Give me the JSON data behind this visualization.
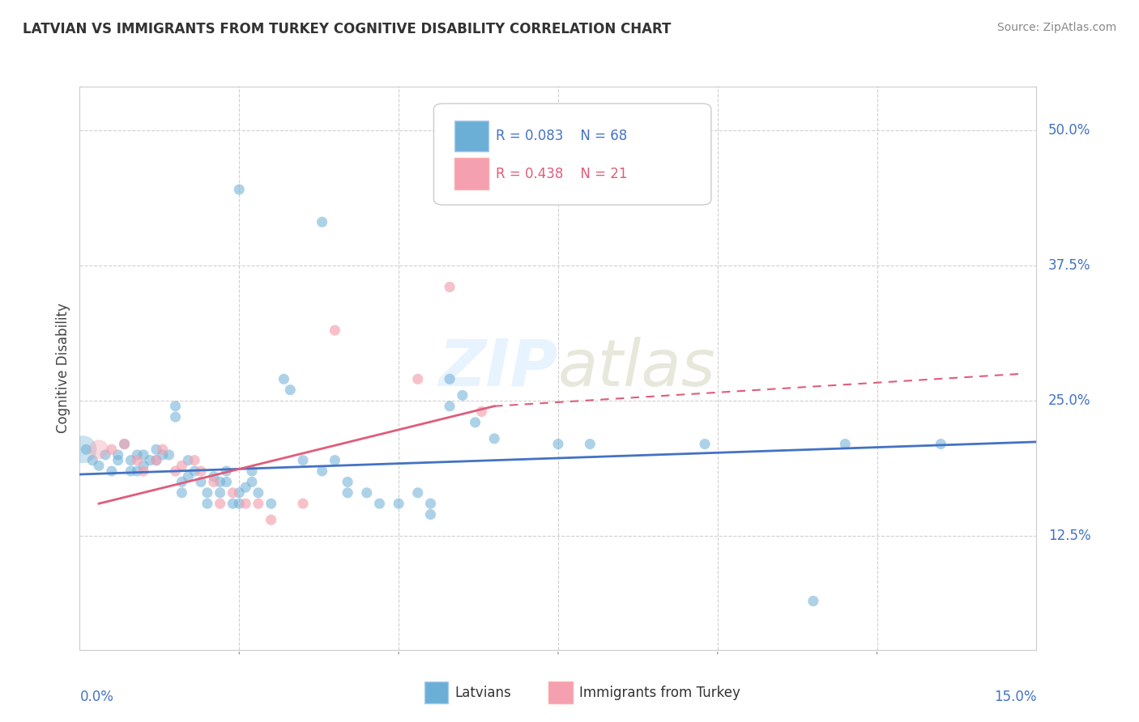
{
  "title": "LATVIAN VS IMMIGRANTS FROM TURKEY COGNITIVE DISABILITY CORRELATION CHART",
  "source": "Source: ZipAtlas.com",
  "ylabel": "Cognitive Disability",
  "y_ticks": [
    0.125,
    0.25,
    0.375,
    0.5
  ],
  "y_tick_labels": [
    "12.5%",
    "25.0%",
    "37.5%",
    "50.0%"
  ],
  "xmin": 0.0,
  "xmax": 0.15,
  "ymin": 0.02,
  "ymax": 0.54,
  "latvian_color": "#6baed6",
  "turkey_color": "#f4a0b0",
  "trend_blue": "#4472c4",
  "trend_pink": "#e05c7a",
  "latvian_scatter": [
    [
      0.001,
      0.205
    ],
    [
      0.002,
      0.195
    ],
    [
      0.003,
      0.19
    ],
    [
      0.004,
      0.2
    ],
    [
      0.005,
      0.185
    ],
    [
      0.006,
      0.2
    ],
    [
      0.006,
      0.195
    ],
    [
      0.007,
      0.21
    ],
    [
      0.008,
      0.185
    ],
    [
      0.008,
      0.195
    ],
    [
      0.009,
      0.2
    ],
    [
      0.009,
      0.185
    ],
    [
      0.01,
      0.2
    ],
    [
      0.01,
      0.19
    ],
    [
      0.011,
      0.195
    ],
    [
      0.012,
      0.205
    ],
    [
      0.012,
      0.195
    ],
    [
      0.013,
      0.2
    ],
    [
      0.014,
      0.2
    ],
    [
      0.015,
      0.245
    ],
    [
      0.015,
      0.235
    ],
    [
      0.016,
      0.175
    ],
    [
      0.016,
      0.165
    ],
    [
      0.017,
      0.195
    ],
    [
      0.017,
      0.18
    ],
    [
      0.018,
      0.185
    ],
    [
      0.019,
      0.175
    ],
    [
      0.02,
      0.155
    ],
    [
      0.02,
      0.165
    ],
    [
      0.021,
      0.18
    ],
    [
      0.022,
      0.175
    ],
    [
      0.022,
      0.165
    ],
    [
      0.023,
      0.185
    ],
    [
      0.023,
      0.175
    ],
    [
      0.024,
      0.155
    ],
    [
      0.025,
      0.165
    ],
    [
      0.025,
      0.155
    ],
    [
      0.026,
      0.17
    ],
    [
      0.027,
      0.175
    ],
    [
      0.027,
      0.185
    ],
    [
      0.028,
      0.165
    ],
    [
      0.03,
      0.155
    ],
    [
      0.032,
      0.27
    ],
    [
      0.033,
      0.26
    ],
    [
      0.035,
      0.195
    ],
    [
      0.038,
      0.185
    ],
    [
      0.04,
      0.195
    ],
    [
      0.042,
      0.175
    ],
    [
      0.042,
      0.165
    ],
    [
      0.045,
      0.165
    ],
    [
      0.047,
      0.155
    ],
    [
      0.05,
      0.155
    ],
    [
      0.053,
      0.165
    ],
    [
      0.055,
      0.155
    ],
    [
      0.055,
      0.145
    ],
    [
      0.058,
      0.245
    ],
    [
      0.06,
      0.255
    ],
    [
      0.062,
      0.23
    ],
    [
      0.065,
      0.215
    ],
    [
      0.038,
      0.415
    ],
    [
      0.025,
      0.445
    ],
    [
      0.058,
      0.27
    ],
    [
      0.075,
      0.21
    ],
    [
      0.08,
      0.21
    ],
    [
      0.098,
      0.21
    ],
    [
      0.115,
      0.065
    ],
    [
      0.12,
      0.21
    ],
    [
      0.135,
      0.21
    ]
  ],
  "turkey_scatter": [
    [
      0.005,
      0.205
    ],
    [
      0.007,
      0.21
    ],
    [
      0.009,
      0.195
    ],
    [
      0.01,
      0.185
    ],
    [
      0.012,
      0.195
    ],
    [
      0.013,
      0.205
    ],
    [
      0.015,
      0.185
    ],
    [
      0.016,
      0.19
    ],
    [
      0.018,
      0.195
    ],
    [
      0.019,
      0.185
    ],
    [
      0.021,
      0.175
    ],
    [
      0.022,
      0.155
    ],
    [
      0.024,
      0.165
    ],
    [
      0.026,
      0.155
    ],
    [
      0.028,
      0.155
    ],
    [
      0.03,
      0.14
    ],
    [
      0.035,
      0.155
    ],
    [
      0.04,
      0.315
    ],
    [
      0.053,
      0.27
    ],
    [
      0.058,
      0.355
    ],
    [
      0.063,
      0.24
    ]
  ],
  "latvian_bubble_size": 80,
  "turkey_bubble_size": 80,
  "blue_trend": [
    0.0,
    0.182,
    0.15,
    0.212
  ],
  "pink_trend_solid": [
    0.003,
    0.155,
    0.065,
    0.245
  ],
  "pink_trend_dashed": [
    0.065,
    0.245,
    0.148,
    0.275
  ],
  "watermark": "ZIPatlas",
  "background_color": "#ffffff",
  "grid_color": "#d0d0d0",
  "legend_r1": "R = 0.083",
  "legend_n1": "N = 68",
  "legend_r2": "R = 0.438",
  "legend_n2": "N = 21"
}
